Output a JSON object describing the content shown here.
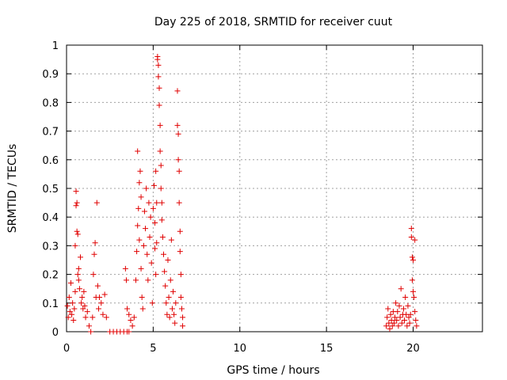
{
  "chart_data": {
    "type": "scatter",
    "title": "Day 225 of 2018, SRMTID for receiver cuut",
    "xlabel": "GPS time / hours",
    "ylabel": "SRMTID / TECUs",
    "xlim": [
      0,
      24
    ],
    "ylim": [
      0,
      1
    ],
    "xticks": [
      0,
      5,
      10,
      15,
      20
    ],
    "yticks": [
      0,
      0.1,
      0.2,
      0.3,
      0.4,
      0.5,
      0.6,
      0.7,
      0.8,
      0.9,
      1
    ],
    "xtick_labels": [
      "0",
      "5",
      "10",
      "15",
      "20"
    ],
    "ytick_labels": [
      "0",
      "0.1",
      "0.2",
      "0.3",
      "0.4",
      "0.5",
      "0.6",
      "0.7",
      "0.8",
      "0.9",
      "1"
    ],
    "grid": true,
    "marker": "+",
    "color": "#e00000",
    "series": [
      {
        "name": "SRMTID",
        "points": [
          [
            0.05,
            0.09
          ],
          [
            0.1,
            0.05
          ],
          [
            0.15,
            0.12
          ],
          [
            0.2,
            0.07
          ],
          [
            0.25,
            0.17
          ],
          [
            0.3,
            0.06
          ],
          [
            0.35,
            0.1
          ],
          [
            0.4,
            0.04
          ],
          [
            0.45,
            0.08
          ],
          [
            0.5,
            0.14
          ],
          [
            0.5,
            0.3
          ],
          [
            0.55,
            0.49
          ],
          [
            0.55,
            0.44
          ],
          [
            0.6,
            0.45
          ],
          [
            0.6,
            0.35
          ],
          [
            0.65,
            0.34
          ],
          [
            0.65,
            0.2
          ],
          [
            0.7,
            0.18
          ],
          [
            0.7,
            0.22
          ],
          [
            0.75,
            0.15
          ],
          [
            0.8,
            0.26
          ],
          [
            0.85,
            0.1
          ],
          [
            0.9,
            0.12
          ],
          [
            0.95,
            0.08
          ],
          [
            1.0,
            0.14
          ],
          [
            1.05,
            0.09
          ],
          [
            1.1,
            0.05
          ],
          [
            1.2,
            0.07
          ],
          [
            1.3,
            0.02
          ],
          [
            1.4,
            0.0
          ],
          [
            1.5,
            0.05
          ],
          [
            1.55,
            0.2
          ],
          [
            1.6,
            0.27
          ],
          [
            1.65,
            0.31
          ],
          [
            1.7,
            0.12
          ],
          [
            1.75,
            0.45
          ],
          [
            1.8,
            0.16
          ],
          [
            1.85,
            0.08
          ],
          [
            1.9,
            0.12
          ],
          [
            2.0,
            0.1
          ],
          [
            2.1,
            0.06
          ],
          [
            2.2,
            0.13
          ],
          [
            2.3,
            0.05
          ],
          [
            2.5,
            0.0
          ],
          [
            2.7,
            0.0
          ],
          [
            2.9,
            0.0
          ],
          [
            3.1,
            0.0
          ],
          [
            3.3,
            0.0
          ],
          [
            3.5,
            0.0
          ],
          [
            3.6,
            0.0
          ],
          [
            3.4,
            0.22
          ],
          [
            3.45,
            0.18
          ],
          [
            3.5,
            0.08
          ],
          [
            3.6,
            0.06
          ],
          [
            3.7,
            0.04
          ],
          [
            3.8,
            0.02
          ],
          [
            3.9,
            0.05
          ],
          [
            4.0,
            0.18
          ],
          [
            4.05,
            0.28
          ],
          [
            4.1,
            0.37
          ],
          [
            4.1,
            0.63
          ],
          [
            4.15,
            0.43
          ],
          [
            4.2,
            0.32
          ],
          [
            4.2,
            0.52
          ],
          [
            4.25,
            0.56
          ],
          [
            4.3,
            0.47
          ],
          [
            4.3,
            0.22
          ],
          [
            4.35,
            0.12
          ],
          [
            4.4,
            0.08
          ],
          [
            4.45,
            0.3
          ],
          [
            4.5,
            0.42
          ],
          [
            4.55,
            0.36
          ],
          [
            4.6,
            0.5
          ],
          [
            4.65,
            0.27
          ],
          [
            4.7,
            0.18
          ],
          [
            4.75,
            0.45
          ],
          [
            4.8,
            0.33
          ],
          [
            4.85,
            0.4
          ],
          [
            4.9,
            0.24
          ],
          [
            4.95,
            0.1
          ],
          [
            5.0,
            0.43
          ],
          [
            5.05,
            0.51
          ],
          [
            5.1,
            0.38
          ],
          [
            5.1,
            0.29
          ],
          [
            5.15,
            0.2
          ],
          [
            5.15,
            0.56
          ],
          [
            5.2,
            0.45
          ],
          [
            5.2,
            0.31
          ],
          [
            5.25,
            0.96
          ],
          [
            5.25,
            0.95
          ],
          [
            5.3,
            0.93
          ],
          [
            5.3,
            0.89
          ],
          [
            5.35,
            0.85
          ],
          [
            5.35,
            0.79
          ],
          [
            5.4,
            0.72
          ],
          [
            5.4,
            0.63
          ],
          [
            5.45,
            0.58
          ],
          [
            5.45,
            0.5
          ],
          [
            5.5,
            0.45
          ],
          [
            5.5,
            0.39
          ],
          [
            5.55,
            0.33
          ],
          [
            5.6,
            0.27
          ],
          [
            5.65,
            0.21
          ],
          [
            5.7,
            0.16
          ],
          [
            5.75,
            0.1
          ],
          [
            5.8,
            0.06
          ],
          [
            5.85,
            0.25
          ],
          [
            5.9,
            0.12
          ],
          [
            5.95,
            0.05
          ],
          [
            6.0,
            0.18
          ],
          [
            6.05,
            0.32
          ],
          [
            6.1,
            0.08
          ],
          [
            6.15,
            0.14
          ],
          [
            6.2,
            0.06
          ],
          [
            6.25,
            0.03
          ],
          [
            6.3,
            0.1
          ],
          [
            6.4,
            0.84
          ],
          [
            6.4,
            0.72
          ],
          [
            6.45,
            0.69
          ],
          [
            6.45,
            0.6
          ],
          [
            6.5,
            0.56
          ],
          [
            6.5,
            0.45
          ],
          [
            6.55,
            0.35
          ],
          [
            6.55,
            0.28
          ],
          [
            6.6,
            0.2
          ],
          [
            6.6,
            0.12
          ],
          [
            6.65,
            0.08
          ],
          [
            6.7,
            0.05
          ],
          [
            6.7,
            0.02
          ],
          [
            18.45,
            0.02
          ],
          [
            18.5,
            0.05
          ],
          [
            18.55,
            0.08
          ],
          [
            18.6,
            0.03
          ],
          [
            18.65,
            0.01
          ],
          [
            18.7,
            0.06
          ],
          [
            18.75,
            0.04
          ],
          [
            18.8,
            0.02
          ],
          [
            18.85,
            0.07
          ],
          [
            18.9,
            0.03
          ],
          [
            18.95,
            0.05
          ],
          [
            19.0,
            0.1
          ],
          [
            19.05,
            0.04
          ],
          [
            19.1,
            0.07
          ],
          [
            19.15,
            0.02
          ],
          [
            19.2,
            0.09
          ],
          [
            19.25,
            0.05
          ],
          [
            19.3,
            0.15
          ],
          [
            19.35,
            0.03
          ],
          [
            19.4,
            0.06
          ],
          [
            19.45,
            0.08
          ],
          [
            19.5,
            0.04
          ],
          [
            19.55,
            0.12
          ],
          [
            19.6,
            0.06
          ],
          [
            19.65,
            0.02
          ],
          [
            19.7,
            0.09
          ],
          [
            19.75,
            0.05
          ],
          [
            19.8,
            0.03
          ],
          [
            19.85,
            0.06
          ],
          [
            19.9,
            0.36
          ],
          [
            19.9,
            0.33
          ],
          [
            19.95,
            0.26
          ],
          [
            19.95,
            0.18
          ],
          [
            20.0,
            0.25
          ],
          [
            20.0,
            0.14
          ],
          [
            20.05,
            0.12
          ],
          [
            20.1,
            0.32
          ],
          [
            20.1,
            0.07
          ],
          [
            20.15,
            0.04
          ],
          [
            20.2,
            0.02
          ]
        ]
      }
    ]
  }
}
